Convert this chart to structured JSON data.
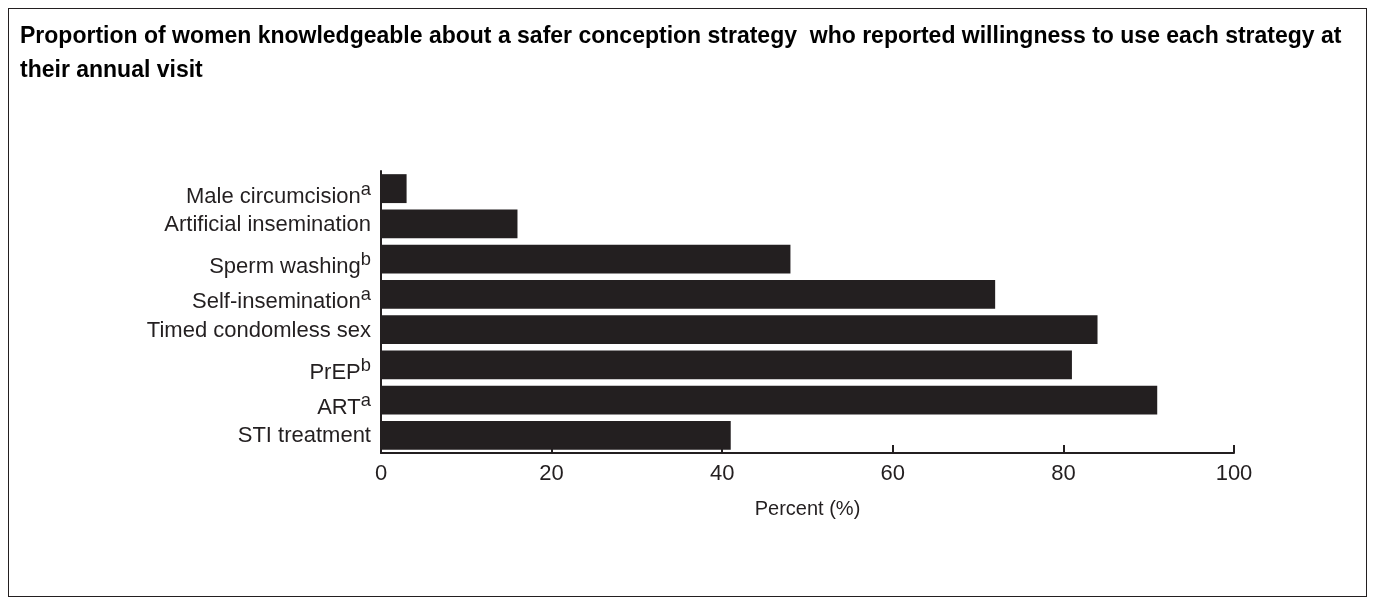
{
  "chart_data": {
    "type": "bar",
    "orientation": "horizontal",
    "title": "Proportion of women knowledgeable about a safer conception strategy  who reported willingness to use each strategy at their annual visit",
    "categories": [
      "Male circumcision$^{a}$",
      "Artificial insemination",
      "Sperm washing$^{b}$",
      "Self-insemination$^{a}$",
      "Timed condomless sex",
      "PrEP$^{b}$",
      "ART$^{a}$",
      "STI treatment"
    ],
    "values": [
      3,
      16,
      48,
      72,
      84,
      81,
      91,
      41
    ],
    "color": "#231f20",
    "xlim": [
      0,
      100
    ],
    "xticks": [
      0,
      20,
      40,
      60,
      80,
      100
    ],
    "xlabel": "Percent (%)",
    "grid": false
  }
}
